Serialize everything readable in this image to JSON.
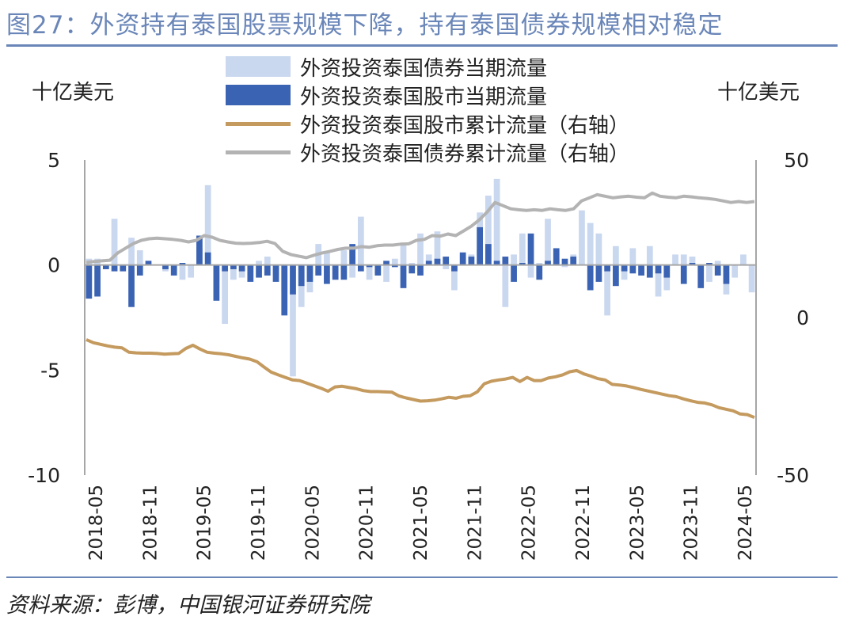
{
  "title": "图27：外资持有泰国股票规模下降，持有泰国债券规模相对稳定",
  "source": "资料来源：彭博，中国银河证券研究院",
  "chart_data": {
    "type": "bar",
    "left_unit": "十亿美元",
    "right_unit": "十亿美元",
    "legend": [
      "外资投资泰国债券当期流量",
      "外资投资泰国股市当期流量",
      "外资投资泰国股市累计流量（右轴）",
      "外资投资泰国债券累计流量（右轴）"
    ],
    "legend_position": "top",
    "grid": false,
    "y_left": {
      "min": -10,
      "max": 5,
      "ticks": [
        "5",
        "0",
        "-5",
        "-10"
      ]
    },
    "y_right": {
      "min": -50,
      "max": 50,
      "ticks": [
        "50",
        "0",
        "-50"
      ]
    },
    "x_ticks": [
      "2018-05",
      "2018-11",
      "2019-05",
      "2019-11",
      "2020-05",
      "2020-11",
      "2021-05",
      "2021-11",
      "2022-05",
      "2022-11",
      "2023-05",
      "2023-11",
      "2024-05"
    ],
    "series": [
      {
        "name": "外资投资泰国债券当期流量",
        "axis": "left",
        "type": "bar",
        "color": "#c9d7ef",
        "values": [
          0.3,
          0.3,
          -0.1,
          2.2,
          -0.2,
          1.3,
          0.7,
          0.0,
          0.0,
          -0.3,
          -0.2,
          -0.7,
          -0.6,
          0.8,
          3.8,
          -0.8,
          -2.8,
          -0.7,
          -0.6,
          -0.2,
          0.2,
          0.4,
          -0.5,
          -1.3,
          -5.3,
          -2.0,
          -1.3,
          1.0,
          0.6,
          -0.7,
          0.7,
          -0.6,
          2.3,
          -0.7,
          -0.4,
          -0.8,
          0.3,
          1.0,
          0.1,
          1.5,
          0.5,
          1.6,
          -0.2,
          -1.2,
          0.5,
          0.5,
          2.5,
          3.3,
          4.1,
          -2.0,
          0.5,
          1.5,
          -0.6,
          0.1,
          2.2,
          0.3,
          -0.1,
          0.5,
          2.6,
          2.0,
          1.5,
          -2.4,
          0.9,
          -0.7,
          0.8,
          -0.5,
          0.9,
          -1.5,
          -1.2,
          0.5,
          0.5,
          0.4,
          -0.4,
          -0.8,
          0.2,
          -1.4,
          -0.6,
          0.5,
          -1.3
        ]
      },
      {
        "name": "外资投资泰国股市当期流量",
        "axis": "left",
        "type": "bar",
        "color": "#3b63b3",
        "values": [
          -1.6,
          -1.5,
          -0.2,
          -0.3,
          -0.3,
          -2.0,
          -0.5,
          0.2,
          0.0,
          -0.2,
          -0.5,
          0.1,
          0.0,
          1.4,
          0.6,
          -1.7,
          -0.3,
          -0.2,
          -0.3,
          -0.8,
          -0.6,
          -0.5,
          -0.8,
          -2.4,
          -1.4,
          -1.0,
          -0.8,
          -0.5,
          -0.9,
          -0.7,
          -0.7,
          1.0,
          -0.3,
          -0.1,
          -0.5,
          0.2,
          -0.1,
          -1.1,
          -0.4,
          -0.5,
          0.2,
          0.3,
          0.4,
          -0.3,
          0.6,
          0.4,
          1.8,
          1.0,
          0.2,
          0.4,
          -0.8,
          0.1,
          1.5,
          -0.7,
          0.2,
          0.8,
          0.3,
          0.4,
          0.0,
          -1.2,
          -0.8,
          -0.3,
          -1.0,
          -0.3,
          -0.4,
          -0.5,
          -0.6,
          -0.4,
          -0.6,
          0.0,
          -0.9,
          0.1,
          -1.1,
          0.1,
          -0.5,
          -0.9
        ]
      },
      {
        "name": "外资投资泰国股市累计流量（右轴）",
        "axis": "right",
        "type": "line",
        "color": "#c49a5e",
        "values": [
          -7.0,
          -8.0,
          -8.5,
          -9.0,
          -9.4,
          -9.6,
          -11.0,
          -11.2,
          -11.3,
          -11.3,
          -11.4,
          -11.6,
          -11.5,
          -11.4,
          -9.8,
          -8.8,
          -10.0,
          -11.0,
          -11.3,
          -11.5,
          -11.8,
          -12.3,
          -12.8,
          -13.2,
          -14.0,
          -15.7,
          -17.3,
          -18.2,
          -19.0,
          -19.8,
          -20.0,
          -20.8,
          -21.6,
          -22.4,
          -23.4,
          -22.0,
          -21.8,
          -22.2,
          -22.6,
          -23.2,
          -23.5,
          -23.5,
          -23.6,
          -23.7,
          -24.9,
          -25.5,
          -26.0,
          -26.5,
          -26.4,
          -26.2,
          -25.8,
          -25.3,
          -25.6,
          -25.0,
          -24.8,
          -23.6,
          -21.0,
          -20.2,
          -19.8,
          -19.5,
          -19.0,
          -20.3,
          -19.0,
          -20.0,
          -20.0,
          -19.2,
          -18.8,
          -18.2,
          -17.2,
          -16.8,
          -17.9,
          -18.6,
          -19.4,
          -19.8,
          -21.2,
          -21.4,
          -21.7,
          -22.2,
          -22.8,
          -23.3,
          -23.8,
          -24.3,
          -24.8,
          -25.1,
          -25.8,
          -26.4,
          -26.9,
          -27.1,
          -27.7,
          -28.6,
          -29.1,
          -29.6,
          -30.6,
          -30.8,
          -31.7
        ]
      },
      {
        "name": "外资投资泰国债券累计流量（右轴）",
        "axis": "right",
        "type": "line",
        "color": "#b3b3b3",
        "values": [
          17.5,
          17.8,
          18.0,
          18.2,
          20.5,
          22.0,
          23.5,
          24.5,
          25.0,
          25.2,
          25.0,
          24.8,
          24.5,
          24.0,
          24.5,
          26.0,
          25.5,
          24.5,
          24.0,
          23.6,
          23.5,
          23.6,
          23.8,
          24.2,
          23.5,
          21.0,
          20.0,
          19.5,
          19.0,
          19.8,
          20.5,
          21.0,
          21.6,
          22.0,
          22.0,
          22.5,
          22.3,
          22.8,
          23.0,
          23.0,
          23.3,
          23.4,
          24.5,
          24.8,
          26.0,
          25.8,
          26.5,
          26.0,
          27.5,
          29.0,
          31.0,
          33.5,
          36.5,
          35.5,
          34.5,
          34.2,
          34.0,
          34.2,
          34.0,
          34.5,
          34.2,
          34.0,
          34.5,
          37.0,
          38.0,
          39.0,
          38.5,
          38.0,
          38.3,
          38.5,
          38.2,
          38.0,
          39.5,
          38.5,
          38.2,
          38.0,
          38.5,
          38.3,
          38.0,
          37.8,
          37.5,
          37.0,
          36.5,
          36.8,
          36.5,
          36.8
        ]
      }
    ]
  }
}
